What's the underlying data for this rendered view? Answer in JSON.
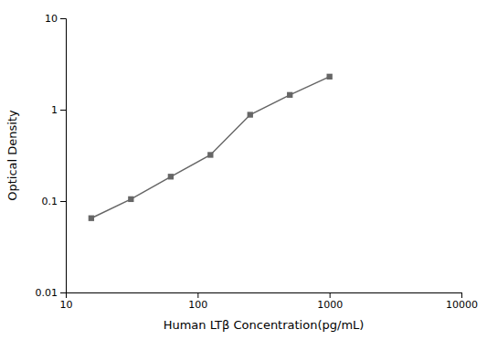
{
  "chart_data": {
    "type": "line",
    "x": [
      15.6,
      31.2,
      62.5,
      125,
      250,
      500,
      1000
    ],
    "values": [
      0.065,
      0.105,
      0.185,
      0.32,
      0.88,
      1.45,
      2.3
    ],
    "xlabel": "Human LTβ Concentration(pg/mL)",
    "ylabel": "Optical Density",
    "xlim": [
      10,
      10000
    ],
    "ylim": [
      0.01,
      10
    ],
    "xticks": [
      10,
      100,
      1000,
      10000
    ],
    "yticks": [
      0.01,
      0.1,
      1,
      10
    ],
    "log": true,
    "grid": false,
    "color": "#666666",
    "marker": "square"
  }
}
